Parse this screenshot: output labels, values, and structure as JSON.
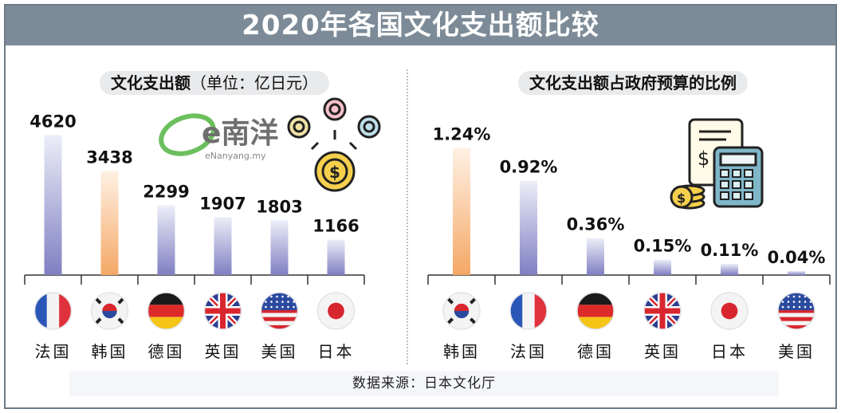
{
  "title": "2020年各国文化支出额比较",
  "source": "数据来源：日本文化厅",
  "watermark": {
    "text": "e南洋",
    "sub": "eNanyang.my"
  },
  "colors": {
    "highlight_top": "#fff1e4",
    "highlight_bottom": "#f4a866",
    "base_top": "#eceef8",
    "base_bottom": "#7f7fc2",
    "panel_bg": "#e9eaec",
    "title_bg": "#7c8b97"
  },
  "chart_data": [
    {
      "type": "bar",
      "title": "文化支出额",
      "unit": "（单位：亿日元）",
      "categories": [
        "法国",
        "韩国",
        "德国",
        "英国",
        "美国",
        "日本"
      ],
      "values": [
        4620,
        3438,
        2299,
        1907,
        1803,
        1166
      ],
      "value_labels": [
        "4620",
        "3438",
        "2299",
        "1907",
        "1803",
        "1166"
      ],
      "highlight": "日本",
      "icons": [
        "france-flag",
        "korea-flag",
        "germany-flag",
        "uk-flag",
        "usa-flag",
        "japan-flag"
      ],
      "ylim": [
        0,
        5000
      ]
    },
    {
      "type": "bar",
      "title": "文化支出额占政府预算的比例",
      "categories": [
        "韩国",
        "法国",
        "德国",
        "英国",
        "日本",
        "美国"
      ],
      "values": [
        1.24,
        0.92,
        0.36,
        0.15,
        0.11,
        0.04
      ],
      "value_labels": [
        "1.24%",
        "0.92%",
        "0.36%",
        "0.15%",
        "0.11%",
        "0.04%"
      ],
      "highlight": "韩国",
      "icons": [
        "korea-flag",
        "france-flag",
        "germany-flag",
        "uk-flag",
        "japan-flag",
        "usa-flag"
      ],
      "ylim": [
        0,
        1.4
      ]
    }
  ]
}
